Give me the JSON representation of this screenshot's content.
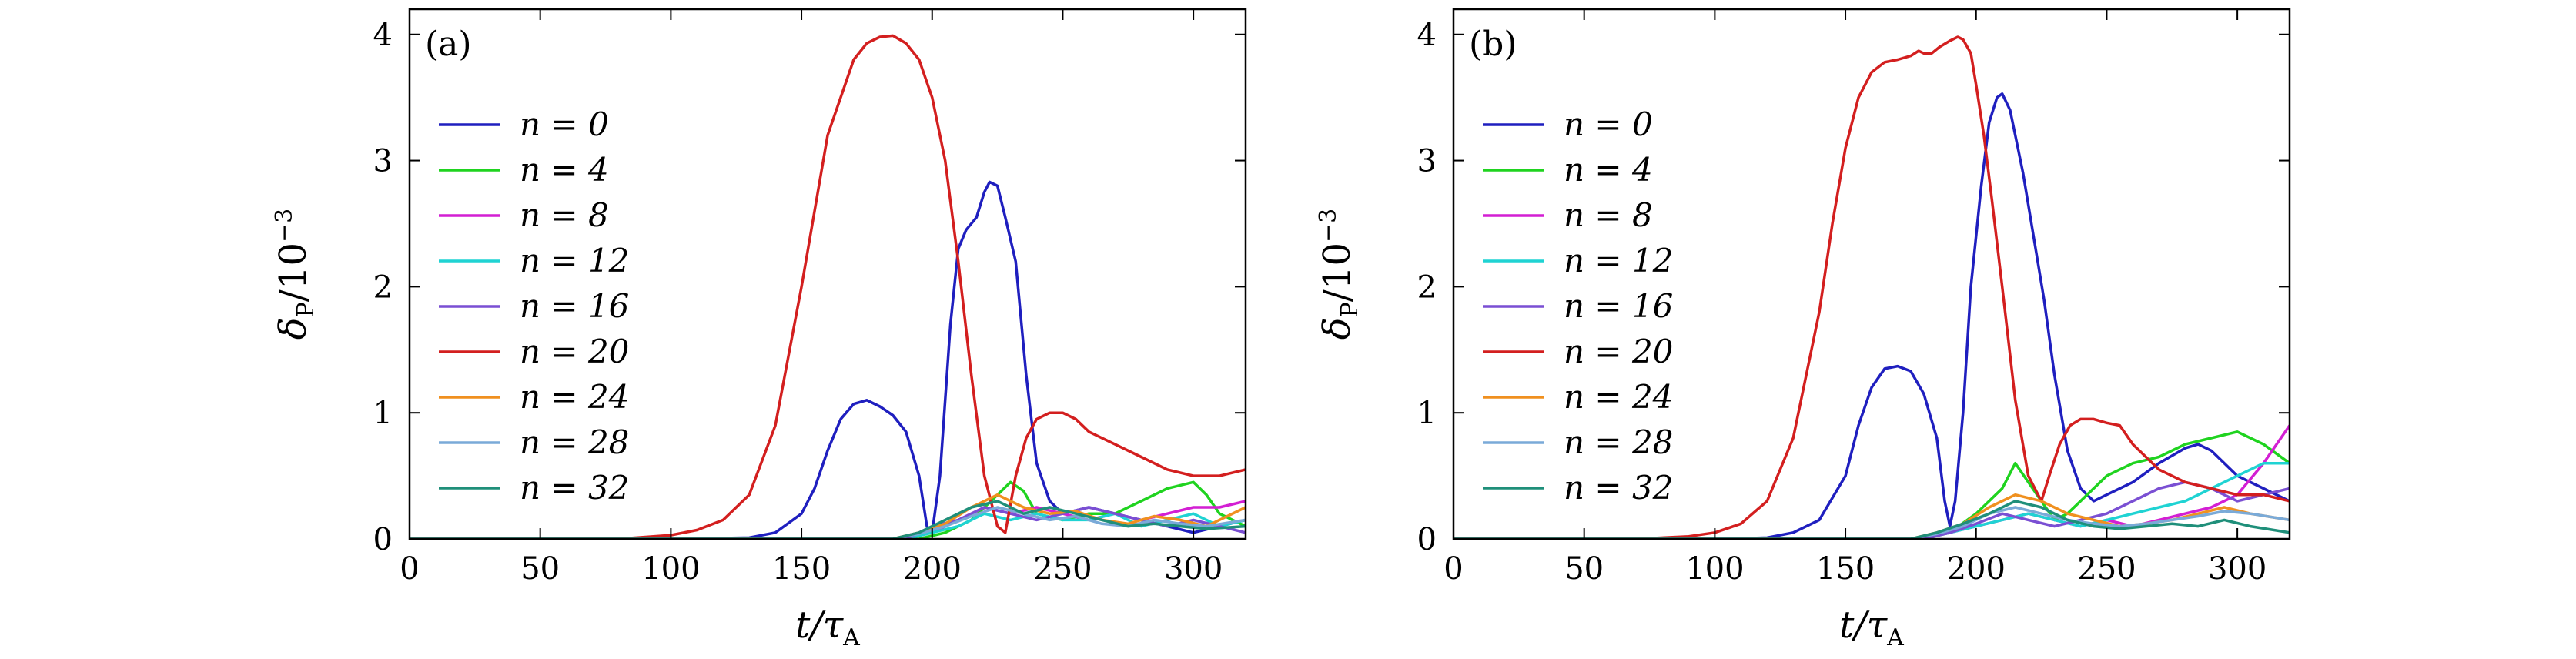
{
  "chart_data": [
    {
      "type": "line",
      "panel_label": "(a)",
      "xlabel": {
        "main": "t/τ",
        "sub": "A"
      },
      "ylabel": {
        "main": "δ",
        "sub": "P",
        "rest": "/10",
        "sup": "−3"
      },
      "xlim": [
        0,
        320
      ],
      "ylim": [
        0,
        4.2
      ],
      "xticks": [
        0,
        50,
        100,
        150,
        200,
        250,
        300
      ],
      "yticks": [
        0,
        1,
        2,
        3,
        4
      ],
      "grid": false,
      "legend_position": "upper-left",
      "series": [
        {
          "name": "n = 0",
          "color": "#1f1fbf",
          "x": [
            0,
            100,
            130,
            140,
            150,
            155,
            160,
            165,
            170,
            175,
            180,
            185,
            190,
            195,
            198,
            200,
            203,
            207,
            210,
            213,
            217,
            220,
            222,
            225,
            228,
            232,
            236,
            240,
            245,
            250,
            260,
            270,
            280,
            290,
            300,
            310,
            320
          ],
          "y": [
            0,
            0,
            0.01,
            0.05,
            0.2,
            0.4,
            0.7,
            0.95,
            1.07,
            1.1,
            1.05,
            0.98,
            0.85,
            0.5,
            0.1,
            0.05,
            0.5,
            1.7,
            2.3,
            2.45,
            2.55,
            2.75,
            2.83,
            2.8,
            2.55,
            2.2,
            1.3,
            0.6,
            0.3,
            0.2,
            0.25,
            0.2,
            0.15,
            0.1,
            0.05,
            0.1,
            0.15
          ]
        },
        {
          "name": "n = 4",
          "color": "#1fd31f",
          "x": [
            0,
            195,
            205,
            215,
            225,
            230,
            235,
            240,
            250,
            260,
            270,
            280,
            290,
            300,
            305,
            310,
            320
          ],
          "y": [
            0,
            0,
            0.05,
            0.15,
            0.35,
            0.45,
            0.38,
            0.2,
            0.15,
            0.2,
            0.2,
            0.3,
            0.4,
            0.45,
            0.35,
            0.2,
            0.1
          ]
        },
        {
          "name": "n = 8",
          "color": "#d31fd3",
          "x": [
            0,
            190,
            200,
            210,
            220,
            230,
            240,
            250,
            260,
            270,
            280,
            290,
            300,
            310,
            320
          ],
          "y": [
            0,
            0,
            0.05,
            0.15,
            0.25,
            0.2,
            0.25,
            0.2,
            0.15,
            0.2,
            0.15,
            0.2,
            0.25,
            0.25,
            0.3
          ]
        },
        {
          "name": "n = 12",
          "color": "#1fd3d3",
          "x": [
            0,
            190,
            200,
            210,
            220,
            230,
            240,
            250,
            260,
            270,
            280,
            290,
            300,
            310,
            320
          ],
          "y": [
            0,
            0,
            0.05,
            0.1,
            0.2,
            0.15,
            0.2,
            0.15,
            0.15,
            0.2,
            0.1,
            0.15,
            0.2,
            0.1,
            0.15
          ]
        },
        {
          "name": "n = 16",
          "color": "#7a4fd3",
          "x": [
            0,
            190,
            200,
            210,
            220,
            230,
            240,
            250,
            260,
            270,
            280,
            290,
            300,
            310,
            320
          ],
          "y": [
            0,
            0,
            0.1,
            0.15,
            0.25,
            0.2,
            0.15,
            0.2,
            0.25,
            0.2,
            0.15,
            0.1,
            0.15,
            0.1,
            0.05
          ]
        },
        {
          "name": "n = 20",
          "color": "#d31f1f",
          "x": [
            0,
            80,
            100,
            110,
            120,
            130,
            140,
            150,
            160,
            170,
            175,
            180,
            185,
            190,
            195,
            200,
            205,
            210,
            215,
            220,
            225,
            228,
            232,
            236,
            240,
            245,
            250,
            255,
            260,
            270,
            280,
            290,
            300,
            310,
            320
          ],
          "y": [
            0,
            0,
            0.03,
            0.07,
            0.15,
            0.35,
            0.9,
            2.0,
            3.2,
            3.8,
            3.93,
            3.98,
            3.99,
            3.93,
            3.8,
            3.5,
            3.0,
            2.2,
            1.3,
            0.5,
            0.1,
            0.05,
            0.5,
            0.8,
            0.95,
            1.0,
            1.0,
            0.95,
            0.85,
            0.75,
            0.65,
            0.55,
            0.5,
            0.5,
            0.55
          ]
        },
        {
          "name": "n = 24",
          "color": "#f0901f",
          "x": [
            0,
            185,
            195,
            205,
            215,
            225,
            235,
            245,
            255,
            265,
            275,
            285,
            295,
            305,
            320
          ],
          "y": [
            0,
            0,
            0.05,
            0.12,
            0.25,
            0.35,
            0.25,
            0.2,
            0.22,
            0.15,
            0.12,
            0.18,
            0.15,
            0.1,
            0.25
          ]
        },
        {
          "name": "n = 28",
          "color": "#7aaad8",
          "x": [
            0,
            185,
            195,
            205,
            215,
            225,
            235,
            245,
            255,
            265,
            275,
            285,
            295,
            305,
            320
          ],
          "y": [
            0,
            0,
            0.04,
            0.1,
            0.18,
            0.25,
            0.2,
            0.15,
            0.18,
            0.12,
            0.1,
            0.15,
            0.12,
            0.1,
            0.15
          ]
        },
        {
          "name": "n = 32",
          "color": "#1f8f7a",
          "x": [
            0,
            185,
            195,
            205,
            215,
            225,
            235,
            245,
            255,
            265,
            275,
            285,
            295,
            305,
            320
          ],
          "y": [
            0,
            0,
            0.05,
            0.15,
            0.25,
            0.3,
            0.2,
            0.25,
            0.2,
            0.15,
            0.1,
            0.12,
            0.1,
            0.08,
            0.1
          ]
        }
      ]
    },
    {
      "type": "line",
      "panel_label": "(b)",
      "xlabel": {
        "main": "t/τ",
        "sub": "A"
      },
      "ylabel": {
        "main": "δ",
        "sub": "P",
        "rest": "/10",
        "sup": "−3"
      },
      "xlim": [
        0,
        320
      ],
      "ylim": [
        0,
        4.2
      ],
      "xticks": [
        0,
        50,
        100,
        150,
        200,
        250,
        300
      ],
      "yticks": [
        0,
        1,
        2,
        3,
        4
      ],
      "grid": false,
      "legend_position": "upper-left",
      "series": [
        {
          "name": "n = 0",
          "color": "#1f1fbf",
          "x": [
            0,
            100,
            120,
            130,
            140,
            150,
            155,
            160,
            165,
            170,
            175,
            180,
            185,
            188,
            190,
            192,
            195,
            198,
            202,
            205,
            208,
            210,
            213,
            215,
            218,
            222,
            226,
            230,
            235,
            240,
            245,
            250,
            260,
            270,
            280,
            285,
            290,
            300,
            310,
            320
          ],
          "y": [
            0,
            0,
            0.01,
            0.05,
            0.15,
            0.5,
            0.9,
            1.2,
            1.35,
            1.37,
            1.33,
            1.15,
            0.8,
            0.3,
            0.1,
            0.3,
            1.0,
            2.0,
            2.8,
            3.3,
            3.5,
            3.53,
            3.4,
            3.2,
            2.9,
            2.4,
            1.9,
            1.3,
            0.7,
            0.4,
            0.3,
            0.35,
            0.45,
            0.6,
            0.72,
            0.75,
            0.7,
            0.5,
            0.4,
            0.3
          ]
        },
        {
          "name": "n = 4",
          "color": "#1fd31f",
          "x": [
            0,
            180,
            190,
            200,
            210,
            215,
            220,
            225,
            230,
            235,
            240,
            250,
            260,
            270,
            280,
            290,
            300,
            310,
            320
          ],
          "y": [
            0,
            0,
            0.05,
            0.2,
            0.4,
            0.6,
            0.45,
            0.3,
            0.15,
            0.2,
            0.3,
            0.5,
            0.6,
            0.65,
            0.75,
            0.8,
            0.85,
            0.75,
            0.6
          ]
        },
        {
          "name": "n = 8",
          "color": "#d31fd3",
          "x": [
            0,
            180,
            190,
            200,
            210,
            220,
            230,
            240,
            250,
            260,
            270,
            280,
            290,
            300,
            310,
            320
          ],
          "y": [
            0,
            0,
            0.05,
            0.1,
            0.15,
            0.2,
            0.15,
            0.1,
            0.15,
            0.1,
            0.15,
            0.2,
            0.25,
            0.35,
            0.6,
            0.9
          ]
        },
        {
          "name": "n = 12",
          "color": "#1fd3d3",
          "x": [
            0,
            180,
            190,
            200,
            210,
            220,
            230,
            240,
            250,
            260,
            270,
            280,
            290,
            300,
            310,
            320
          ],
          "y": [
            0,
            0,
            0.05,
            0.1,
            0.15,
            0.2,
            0.15,
            0.1,
            0.15,
            0.2,
            0.25,
            0.3,
            0.4,
            0.5,
            0.6,
            0.6
          ]
        },
        {
          "name": "n = 16",
          "color": "#7a4fd3",
          "x": [
            0,
            180,
            190,
            200,
            210,
            220,
            230,
            240,
            250,
            260,
            270,
            280,
            290,
            300,
            310,
            320
          ],
          "y": [
            0,
            0,
            0.05,
            0.12,
            0.2,
            0.15,
            0.1,
            0.15,
            0.2,
            0.3,
            0.4,
            0.45,
            0.4,
            0.3,
            0.35,
            0.4
          ]
        },
        {
          "name": "n = 20",
          "color": "#d31f1f",
          "x": [
            0,
            70,
            90,
            100,
            110,
            120,
            130,
            140,
            145,
            150,
            155,
            160,
            165,
            170,
            175,
            178,
            180,
            183,
            186,
            190,
            193,
            195,
            198,
            200,
            203,
            206,
            210,
            215,
            220,
            225,
            228,
            232,
            236,
            240,
            245,
            250,
            255,
            260,
            270,
            280,
            290,
            300,
            310,
            320
          ],
          "y": [
            0,
            0,
            0.02,
            0.05,
            0.12,
            0.3,
            0.8,
            1.8,
            2.5,
            3.1,
            3.5,
            3.7,
            3.78,
            3.8,
            3.83,
            3.87,
            3.85,
            3.85,
            3.9,
            3.95,
            3.98,
            3.96,
            3.85,
            3.6,
            3.2,
            2.7,
            2.0,
            1.1,
            0.5,
            0.3,
            0.5,
            0.75,
            0.9,
            0.95,
            0.95,
            0.92,
            0.9,
            0.75,
            0.55,
            0.45,
            0.4,
            0.35,
            0.35,
            0.3
          ]
        },
        {
          "name": "n = 24",
          "color": "#f0901f",
          "x": [
            0,
            175,
            185,
            195,
            205,
            215,
            225,
            235,
            245,
            255,
            265,
            275,
            285,
            295,
            305,
            320
          ],
          "y": [
            0,
            0,
            0.05,
            0.12,
            0.25,
            0.35,
            0.3,
            0.2,
            0.15,
            0.1,
            0.12,
            0.15,
            0.2,
            0.25,
            0.2,
            0.15
          ]
        },
        {
          "name": "n = 28",
          "color": "#7aaad8",
          "x": [
            0,
            175,
            185,
            195,
            205,
            215,
            225,
            235,
            245,
            255,
            265,
            275,
            285,
            295,
            305,
            320
          ],
          "y": [
            0,
            0,
            0.04,
            0.1,
            0.2,
            0.25,
            0.2,
            0.15,
            0.12,
            0.1,
            0.12,
            0.15,
            0.18,
            0.22,
            0.2,
            0.15
          ]
        },
        {
          "name": "n = 32",
          "color": "#1f8f7a",
          "x": [
            0,
            175,
            185,
            195,
            205,
            215,
            225,
            235,
            245,
            255,
            265,
            275,
            285,
            295,
            305,
            320
          ],
          "y": [
            0,
            0,
            0.05,
            0.12,
            0.2,
            0.3,
            0.25,
            0.15,
            0.1,
            0.08,
            0.1,
            0.12,
            0.1,
            0.15,
            0.1,
            0.05
          ]
        }
      ]
    }
  ]
}
